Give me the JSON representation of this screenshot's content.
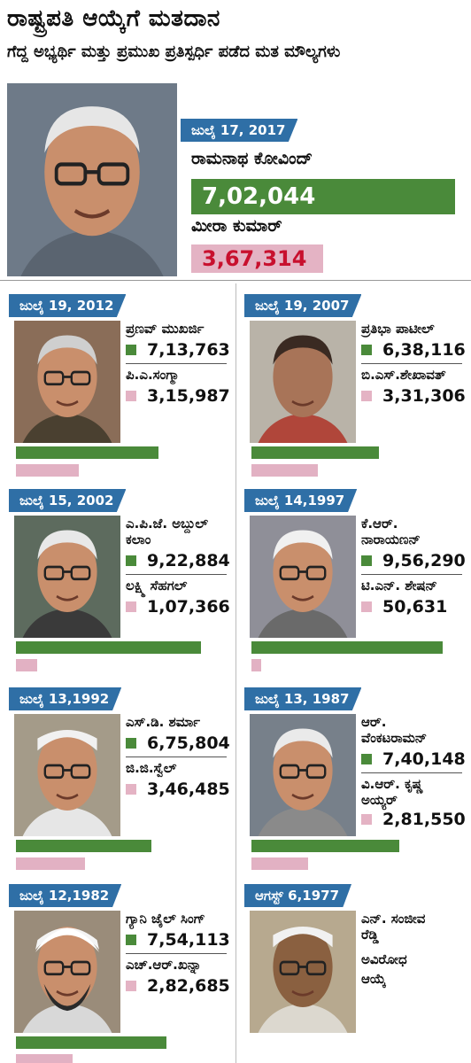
{
  "title": "ರಾಷ್ಟ್ರಪತಿ ಆಯ್ಕೆಗೆ ಮತದಾನ",
  "subtitle": "ಗೆದ್ದ ಅಭ್ಯರ್ಥಿ ಮತ್ತು ಪ್ರಮುಖ ಪ್ರತಿಸ್ಪರ್ಧಿ ಪಡೆದ ಮತ ಮೌಲ್ಯಗಳು",
  "colors": {
    "winner": "#4a8a3a",
    "runner_up": "#e4b3c4",
    "date_tag": "#2f6fa6",
    "highlight_text": "#c8102e"
  },
  "chart_data": {
    "type": "bar",
    "scale_max": 1000000,
    "elections": [
      {
        "date": "ಜುಲೈ 17, 2017",
        "winner": "ರಾಮನಾಥ ಕೋವಿಂದ್",
        "winner_votes": 702044,
        "winner_votes_label": "7,02,044",
        "runner_up": "ಮೀರಾ ಕುಮಾರ್",
        "runner_up_votes": 367314,
        "runner_up_votes_label": "3,67,314"
      },
      {
        "date": "ಜುಲೈ 19, 2012",
        "winner": "ಪ್ರಣವ್ ಮುಖರ್ಜಿ",
        "winner_votes": 713763,
        "winner_votes_label": "7,13,763",
        "runner_up": "ಪಿ.ಎ.ಸಂಗ್ಮಾ",
        "runner_up_votes": 315987,
        "runner_up_votes_label": "3,15,987"
      },
      {
        "date": "ಜುಲೈ 19, 2007",
        "winner": "ಪ್ರತಿಭಾ ಪಾಟೀಲ್",
        "winner_votes": 638116,
        "winner_votes_label": "6,38,116",
        "runner_up": "ಬಿ.ಎಸ್.ಶೇಖಾವತ್",
        "runner_up_votes": 331306,
        "runner_up_votes_label": "3,31,306"
      },
      {
        "date": "ಜುಲೈ 15, 2002",
        "winner": "ಎ.ಪಿ.ಜೆ. ಅಬ್ದುಲ್ ಕಲಾಂ",
        "winner_line1": "ಎ.ಪಿ.ಜೆ. ಅಬ್ದುಲ್",
        "winner_line2": "ಕಲಾಂ",
        "winner_votes": 922884,
        "winner_votes_label": "9,22,884",
        "runner_up": "ಲಕ್ಷ್ಮಿ ಸೆಹಗಲ್",
        "runner_up_votes": 107366,
        "runner_up_votes_label": "1,07,366"
      },
      {
        "date": "ಜುಲೈ 14,1997",
        "winner": "ಕೆ.ಆರ್. ನಾರಾಯಣನ್",
        "winner_line1": "ಕೆ.ಆರ್.",
        "winner_line2": "ನಾರಾಯಣನ್",
        "winner_votes": 956290,
        "winner_votes_label": "9,56,290",
        "runner_up": "ಟಿ.ಎನ್. ಶೇಷನ್",
        "runner_up_votes": 50631,
        "runner_up_votes_label": "50,631"
      },
      {
        "date": "ಜುಲೈ 13,1992",
        "winner": "ಎಸ್.ಡಿ. ಶರ್ಮಾ",
        "winner_votes": 675804,
        "winner_votes_label": "6,75,804",
        "runner_up": "ಜಿ.ಜಿ.ಸ್ವೆಲ್",
        "runner_up_votes": 346485,
        "runner_up_votes_label": "3,46,485"
      },
      {
        "date": "ಜುಲೈ 13, 1987",
        "winner": "ಆರ್. ವೆಂಕಟರಾಮನ್",
        "winner_line1": "ಆರ್.",
        "winner_line2": "ವೆಂಕಟರಾಮನ್",
        "winner_votes": 740148,
        "winner_votes_label": "7,40,148",
        "runner_up": "ವಿ.ಆರ್. ಕೃಷ್ಣ ಅಯ್ಯರ್",
        "runner_up_line1": "ವಿ.ಆರ್. ಕೃಷ್ಣ",
        "runner_up_line2": "ಅಯ್ಯರ್",
        "runner_up_votes": 281550,
        "runner_up_votes_label": "2,81,550"
      },
      {
        "date": "ಜುಲೈ 12,1982",
        "winner": "ಗ್ಯಾನಿ ಜೈಲ್ ಸಿಂಗ್",
        "winner_votes": 754113,
        "winner_votes_label": "7,54,113",
        "runner_up": "ಎಚ್.ಆರ್.ಖನ್ನಾ",
        "runner_up_votes": 282685,
        "runner_up_votes_label": "2,82,685"
      },
      {
        "date": "ಆಗಸ್ಟ್ 6,1977",
        "winner": "ಎನ್. ಸಂಜೀವ ರೆಡ್ಡಿ",
        "winner_line1": "ಎನ್. ಸಂಜೀವ",
        "winner_line2": "ರೆಡ್ಡಿ",
        "note": "ಅವಿರೋಧ ಆಯ್ಕೆ",
        "note_line1": "ಅವಿರೋಧ",
        "note_line2": "ಆಯ್ಕೆ"
      }
    ]
  }
}
